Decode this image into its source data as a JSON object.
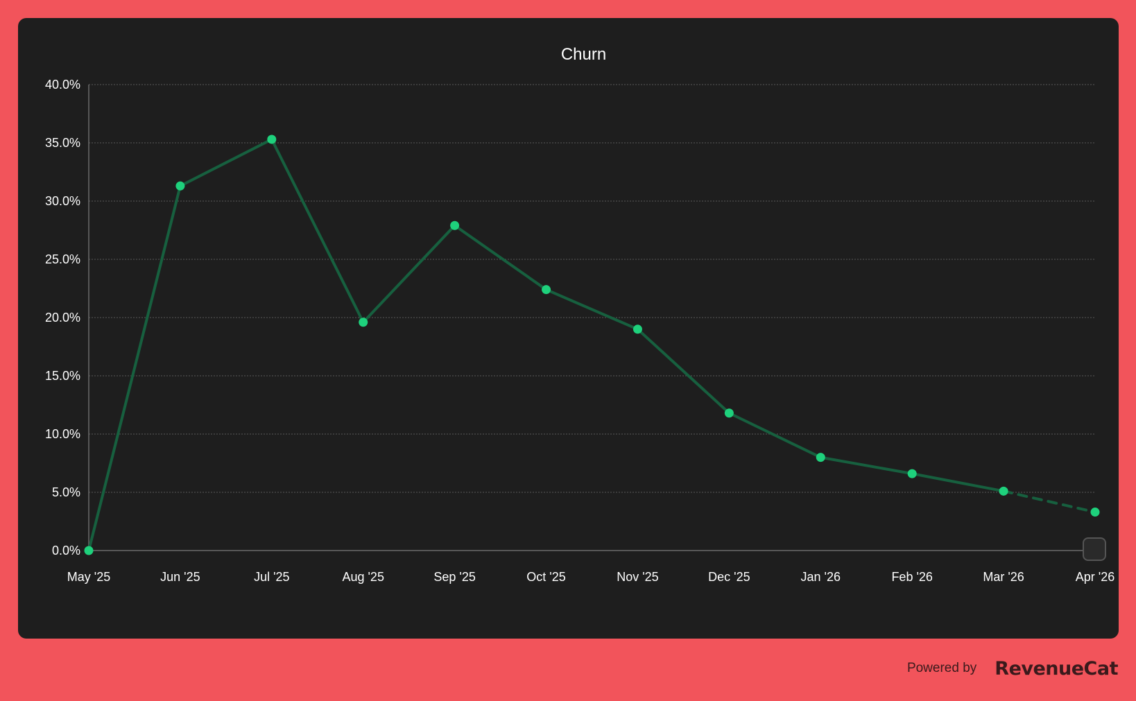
{
  "colors": {
    "page_background": "#f2545b",
    "card_background": "#1e1e1e",
    "line": "#17603f",
    "marker": "#1ed17c",
    "grid": "#5a5a5a",
    "axis": "#6a6a6a",
    "text": "#ffffff",
    "footer_text": "#3a1a1c"
  },
  "chart_data": {
    "type": "line",
    "title": "Churn",
    "xlabel": "",
    "ylabel": "",
    "categories": [
      "May '25",
      "Jun '25",
      "Jul '25",
      "Aug '25",
      "Sep '25",
      "Oct '25",
      "Nov '25",
      "Dec '25",
      "Jan '26",
      "Feb '26",
      "Mar '26",
      "Apr '26"
    ],
    "y_tick_labels": [
      "0.0%",
      "5.0%",
      "10.0%",
      "15.0%",
      "20.0%",
      "25.0%",
      "30.0%",
      "35.0%",
      "40.0%"
    ],
    "y_ticks": [
      0,
      5,
      10,
      15,
      20,
      25,
      30,
      35,
      40
    ],
    "ylim": [
      0,
      40
    ],
    "grid": true,
    "legend": "none",
    "series": [
      {
        "values": [
          0.0,
          31.3,
          35.3,
          19.6,
          27.9,
          22.4,
          19.0,
          11.8,
          8.0,
          6.6,
          5.1,
          3.3
        ],
        "projected_from_index": 10
      }
    ]
  },
  "footer": {
    "powered_by": "Powered by",
    "brand": "RevenueCat"
  }
}
